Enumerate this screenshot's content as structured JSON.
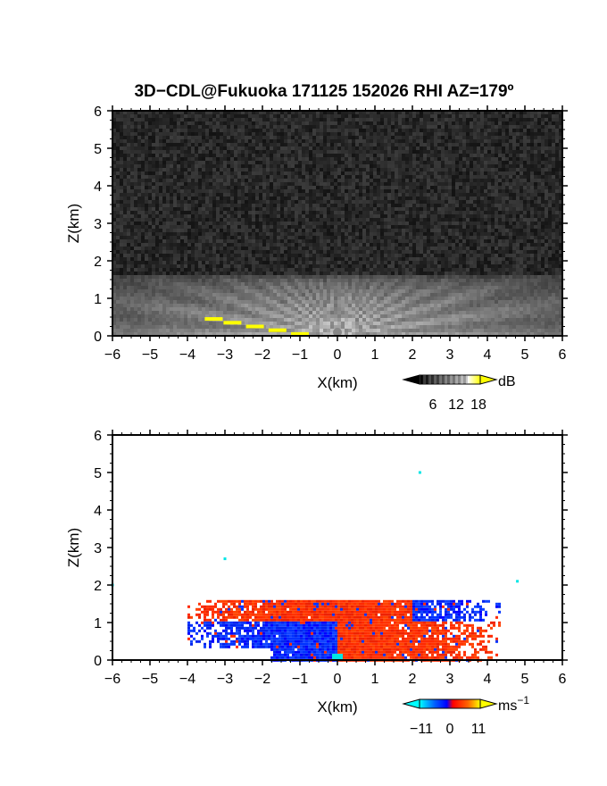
{
  "title": "3D−CDL@Fukuoka 171125 152026 RHI AZ=179º",
  "chart_data": [
    {
      "type": "heatmap",
      "id": "reflectivity",
      "xlabel": "X(km)",
      "ylabel": "Z(km)",
      "xlim": [
        -6,
        6
      ],
      "ylim": [
        0,
        6
      ],
      "xticks": [
        "−6",
        "−5",
        "−4",
        "−3",
        "−2",
        "−1",
        "0",
        "1",
        "2",
        "3",
        "4",
        "5",
        "6"
      ],
      "yticks": [
        "0",
        "1",
        "2",
        "3",
        "4",
        "5",
        "6"
      ],
      "colorbar": {
        "unit": "dB",
        "ticks": [
          "6",
          "12",
          "18"
        ],
        "range": [
          0,
          21
        ],
        "colors": [
          "#000000",
          "#ffffff",
          "#ffff00"
        ]
      },
      "features": {
        "background_noise_db": 2,
        "echo_top_km": 1.6,
        "echo_x_range_km": [
          -6,
          6
        ],
        "ground_clutter_xy": [
          [
            -3.3,
            0.45
          ],
          [
            -2.8,
            0.35
          ],
          [
            -2.2,
            0.25
          ],
          [
            -1.6,
            0.15
          ],
          [
            -1.0,
            0.05
          ]
        ]
      }
    },
    {
      "type": "heatmap",
      "id": "velocity",
      "xlabel": "X(km)",
      "ylabel": "Z(km)",
      "xlim": [
        -6,
        6
      ],
      "ylim": [
        0,
        6
      ],
      "xticks": [
        "−6",
        "−5",
        "−4",
        "−3",
        "−2",
        "−1",
        "0",
        "1",
        "2",
        "3",
        "4",
        "5",
        "6"
      ],
      "yticks": [
        "0",
        "1",
        "2",
        "3",
        "4",
        "5",
        "6"
      ],
      "colorbar": {
        "unit": "ms",
        "unit_sup": "−1",
        "ticks": [
          "−11",
          "0",
          "11"
        ],
        "range": [
          -11,
          11
        ],
        "colors": [
          "#00ffff",
          "#0000ff",
          "#ff0000",
          "#ffff00"
        ]
      },
      "features": {
        "echo_top_km": 1.6,
        "echo_x_range_km": [
          -4,
          4.3
        ],
        "upper_layer_km": [
          1.0,
          1.6
        ],
        "lower_layer_km": [
          0.0,
          1.0
        ],
        "upper_layer_sign": {
          "x_lt_2": "positive",
          "x_gt_2": "negative"
        },
        "lower_layer_sign": {
          "x_lt_0": "negative",
          "x_gt_0": "positive"
        },
        "isolated_points_xz": [
          [
            2.2,
            5.0
          ],
          [
            -3.0,
            2.7
          ],
          [
            4.8,
            2.1
          ],
          [
            -6.0,
            2.0
          ]
        ]
      }
    }
  ]
}
